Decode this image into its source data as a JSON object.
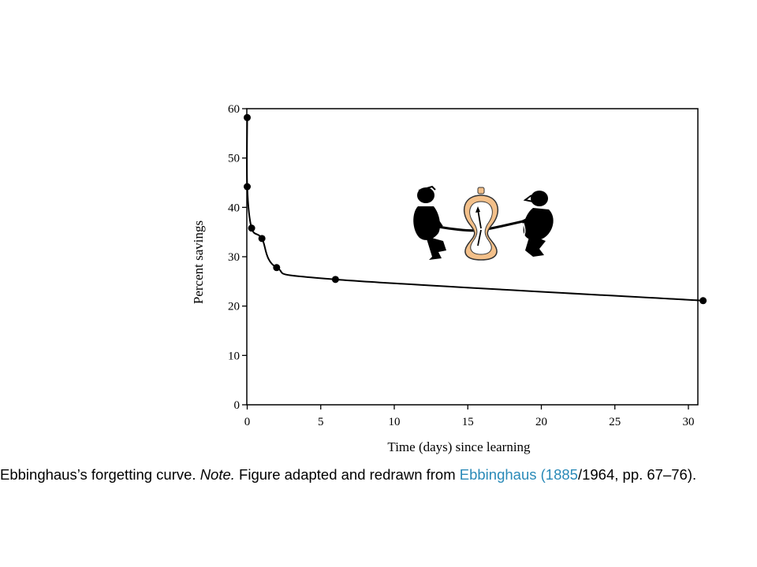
{
  "chart_data": {
    "type": "line",
    "title": "",
    "xlabel": "Time (days) since learning",
    "ylabel": "Percent savings",
    "xlim": [
      0,
      31
    ],
    "ylim": [
      0,
      60
    ],
    "x_ticks": [
      0,
      5,
      10,
      15,
      20,
      25,
      30
    ],
    "y_ticks": [
      0,
      10,
      20,
      30,
      40,
      50,
      60
    ],
    "grid": false,
    "series": [
      {
        "name": "",
        "x": [
          0.0,
          0.0,
          0.3,
          1.0,
          2.0,
          6.0,
          31.0
        ],
        "y": [
          58.2,
          44.2,
          35.8,
          33.7,
          27.8,
          25.4,
          21.1
        ]
      }
    ]
  },
  "caption": {
    "part1": "Ebbinghaus’s forgetting curve. ",
    "note": "Note.",
    "part2": " Figure adapted and redrawn from ",
    "link1": "Ebbinghaus (1885",
    "part3": "/1964, pp. 67–76)."
  },
  "illustration": {
    "icon": "tug-of-war-clock-icon",
    "colors": {
      "clock": "#f3c08a",
      "figures": "#000000"
    }
  }
}
